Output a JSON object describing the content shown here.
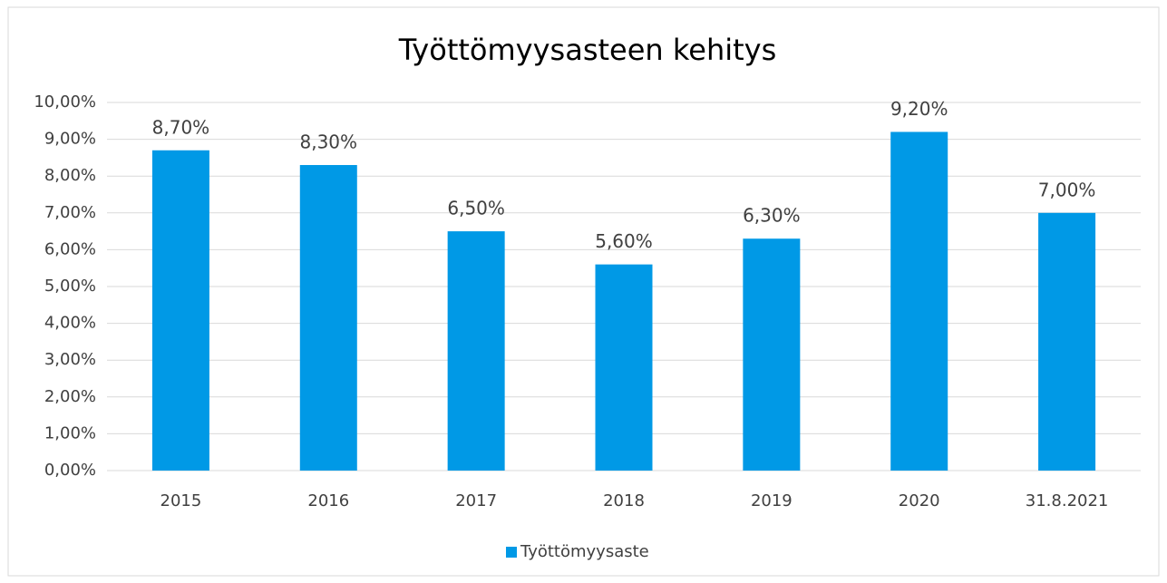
{
  "chart_data": {
    "type": "bar",
    "title": "Työttömyysasteen kehitys",
    "categories": [
      "2015",
      "2016",
      "2017",
      "2018",
      "2019",
      "2020",
      "31.8.2021"
    ],
    "series": [
      {
        "name": "Työttömyysaste",
        "color": "#0099e6",
        "values": [
          8.7,
          8.3,
          6.5,
          5.6,
          6.3,
          9.2,
          7.0
        ],
        "value_labels": [
          "8,70%",
          "8,30%",
          "6,50%",
          "5,60%",
          "6,30%",
          "9,20%",
          "7,00%"
        ]
      }
    ],
    "ylim": [
      0,
      10
    ],
    "yticks": [
      {
        "value": 0,
        "label": "0,00%"
      },
      {
        "value": 1,
        "label": "1,00%"
      },
      {
        "value": 2,
        "label": "2,00%"
      },
      {
        "value": 3,
        "label": "3,00%"
      },
      {
        "value": 4,
        "label": "4,00%"
      },
      {
        "value": 5,
        "label": "5,00%"
      },
      {
        "value": 6,
        "label": "6,00%"
      },
      {
        "value": 7,
        "label": "7,00%"
      },
      {
        "value": 8,
        "label": "8,00%"
      },
      {
        "value": 9,
        "label": "9,00%"
      },
      {
        "value": 10,
        "label": "10,00%"
      }
    ],
    "grid": true,
    "legend": "bottom"
  }
}
